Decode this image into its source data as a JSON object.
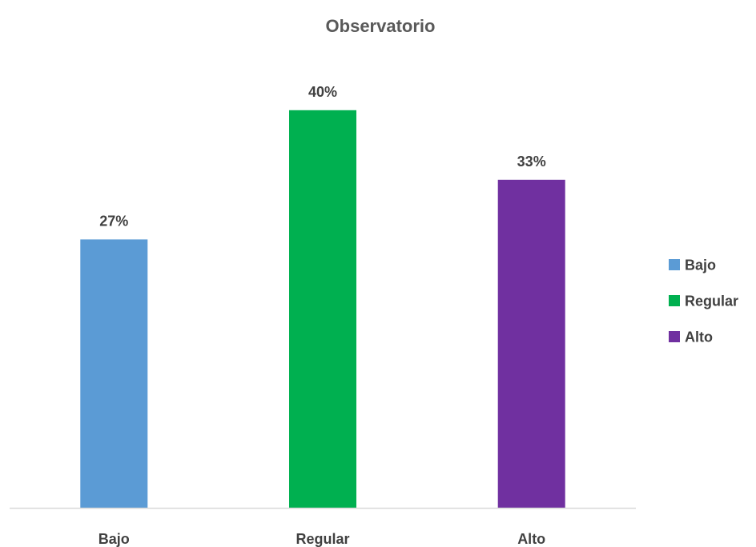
{
  "chart_data": {
    "type": "bar",
    "title": "Observatorio",
    "categories": [
      "Bajo",
      "Regular",
      "Alto"
    ],
    "values": [
      27,
      40,
      33
    ],
    "data_labels": [
      "27%",
      "40%",
      "33%"
    ],
    "colors": [
      "#5B9BD5",
      "#00B050",
      "#7030A0"
    ],
    "xlabel": "",
    "ylabel": "",
    "ylim": [
      0,
      48
    ],
    "grid": false,
    "legend": {
      "position": "right",
      "entries": [
        "Bajo",
        "Regular",
        "Alto"
      ]
    },
    "axis_color": "#D9D9D9"
  }
}
